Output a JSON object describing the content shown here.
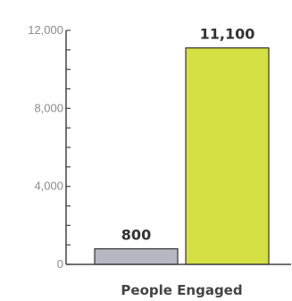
{
  "chart_data": {
    "type": "bar",
    "categories": [
      "",
      ""
    ],
    "values": [
      800,
      11100
    ],
    "value_labels": [
      "800",
      "11,100"
    ],
    "colors": [
      "#b6b7c0",
      "#d4e043"
    ],
    "xlabel": "People Engaged",
    "ylabel": "",
    "title": "",
    "ylim": [
      0,
      12000
    ],
    "yticks": [
      0,
      4000,
      8000,
      12000
    ],
    "ytick_labels": [
      "0",
      "4,000",
      "8,000",
      "12,000"
    ],
    "minor_tick_step": 1000,
    "grid": false
  }
}
